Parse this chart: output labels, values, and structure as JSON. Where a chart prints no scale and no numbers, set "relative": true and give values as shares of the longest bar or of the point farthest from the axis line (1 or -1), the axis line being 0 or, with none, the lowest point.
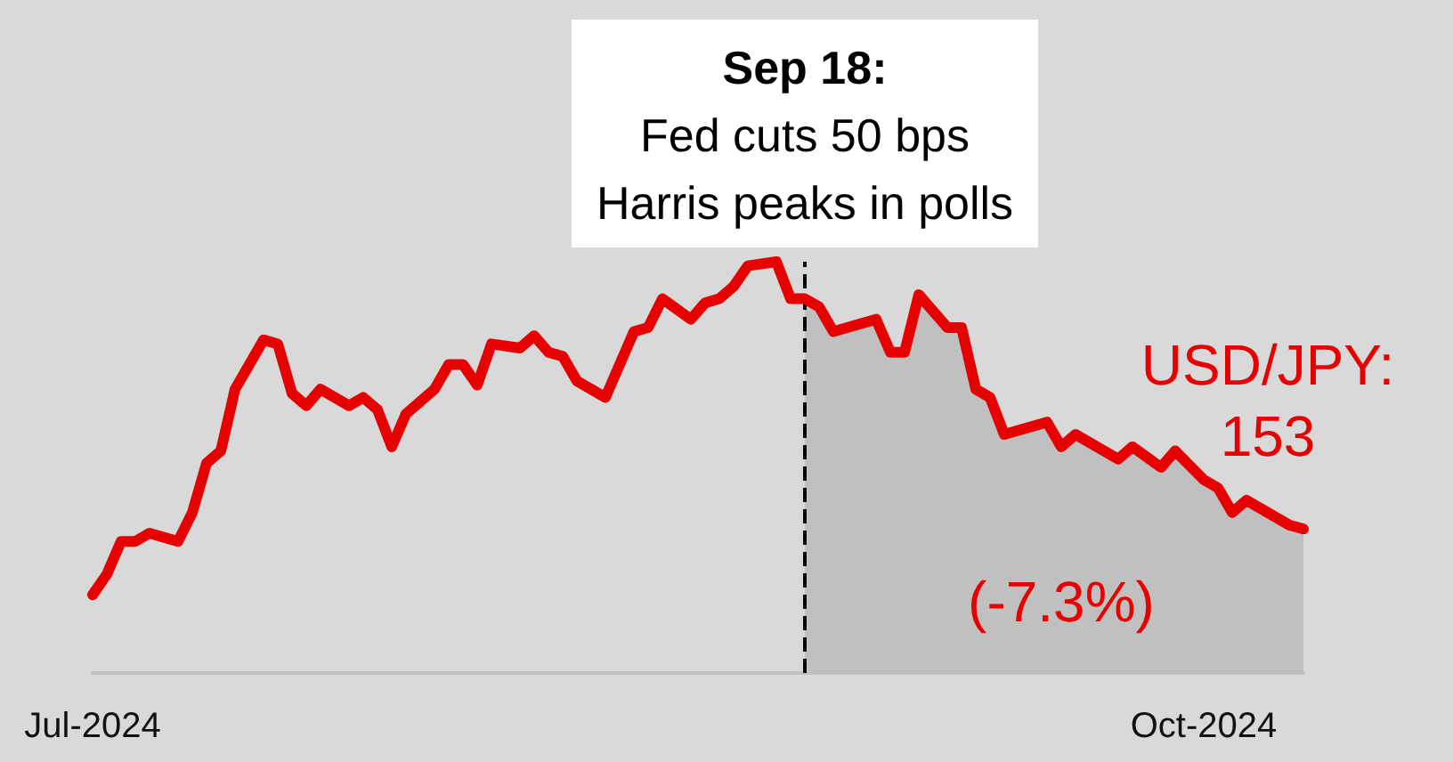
{
  "chart_data": {
    "type": "line",
    "relative": true,
    "x": [
      "2024-07-30",
      "2024-07-31",
      "2024-08-01",
      "2024-08-02",
      "2024-08-03",
      "2024-08-05",
      "2024-08-06",
      "2024-08-07",
      "2024-08-08",
      "2024-08-09",
      "2024-08-11",
      "2024-08-12",
      "2024-08-13",
      "2024-08-14",
      "2024-08-15",
      "2024-08-17",
      "2024-08-18",
      "2024-08-19",
      "2024-08-20",
      "2024-08-21",
      "2024-08-23",
      "2024-08-24",
      "2024-08-25",
      "2024-08-26",
      "2024-08-27",
      "2024-08-29",
      "2024-08-30",
      "2024-08-31",
      "2024-09-01",
      "2024-09-02",
      "2024-09-04",
      "2024-09-06",
      "2024-09-07",
      "2024-09-08",
      "2024-09-10",
      "2024-09-11",
      "2024-09-12",
      "2024-09-13",
      "2024-09-14",
      "2024-09-16",
      "2024-09-17",
      "2024-09-18",
      "2024-09-19",
      "2024-09-20",
      "2024-09-22",
      "2024-09-23",
      "2024-09-24",
      "2024-09-25",
      "2024-09-26",
      "2024-09-28",
      "2024-09-29",
      "2024-09-30",
      "2024-10-01",
      "2024-10-02",
      "2024-10-05",
      "2024-10-06",
      "2024-10-07",
      "2024-10-08",
      "2024-10-10",
      "2024-10-11",
      "2024-10-13",
      "2024-10-14",
      "2024-10-16",
      "2024-10-17",
      "2024-10-18",
      "2024-10-19",
      "2024-10-22",
      "2024-10-23"
    ],
    "series": [
      {
        "color": "#e60000",
        "values": [
          0.19,
          0.24,
          0.32,
          0.32,
          0.34,
          0.32,
          0.39,
          0.51,
          0.54,
          0.69,
          0.81,
          0.8,
          0.68,
          0.65,
          0.69,
          0.65,
          0.67,
          0.64,
          0.55,
          0.63,
          0.69,
          0.75,
          0.75,
          0.7,
          0.8,
          0.79,
          0.82,
          0.78,
          0.77,
          0.71,
          0.67,
          0.83,
          0.84,
          0.91,
          0.86,
          0.9,
          0.91,
          0.94,
          0.99,
          1,
          0.91,
          0.91,
          0.89,
          0.83,
          0.85,
          0.86,
          0.78,
          0.78,
          0.92,
          0.84,
          0.84,
          0.69,
          0.67,
          0.58,
          0.61,
          0.55,
          0.58,
          0.56,
          0.52,
          0.55,
          0.5,
          0.54,
          0.47,
          0.45,
          0.39,
          0.42,
          0.36,
          0.35
        ]
      },
      {
        "type": "area",
        "color": "#c0c0c0",
        "x": [
          "2024-09-18",
          "2024-09-19",
          "2024-09-20",
          "2024-09-22",
          "2024-09-23",
          "2024-09-24",
          "2024-09-25",
          "2024-09-26",
          "2024-09-28",
          "2024-09-29",
          "2024-09-30",
          "2024-10-01",
          "2024-10-02",
          "2024-10-05",
          "2024-10-06",
          "2024-10-07",
          "2024-10-08",
          "2024-10-10",
          "2024-10-11",
          "2024-10-13",
          "2024-10-14",
          "2024-10-16",
          "2024-10-17",
          "2024-10-18",
          "2024-10-19",
          "2024-10-22",
          "2024-10-23"
        ],
        "values": [
          0.91,
          0.89,
          0.83,
          0.85,
          0.86,
          0.78,
          0.78,
          0.92,
          0.84,
          0.84,
          0.69,
          0.67,
          0.58,
          0.61,
          0.55,
          0.58,
          0.56,
          0.52,
          0.55,
          0.5,
          0.54,
          0.47,
          0.45,
          0.39,
          0.42,
          0.36,
          0.35
        ]
      }
    ],
    "xlim": [
      "2024-07-30",
      "2024-10-23"
    ],
    "xticks": [
      {
        "value": "2024-07-30",
        "label": "Jul-2024"
      },
      {
        "value": "2024-10-16",
        "label": "Oct-2024"
      }
    ],
    "ref_lines": [
      {
        "axis": "x",
        "value": "2024-09-18",
        "label": "Sep 18:\nFed cuts 50 bps\nHarris peaks in polls",
        "color": "#000000",
        "line_style": "dashed"
      }
    ],
    "annotations": [
      {
        "text": "USD/JPY:\n153",
        "x": "2024-10-23",
        "y": 0.35
      },
      "(-7.3%)"
    ],
    "grid": false,
    "marker": "none",
    "line_style": "solid"
  }
}
